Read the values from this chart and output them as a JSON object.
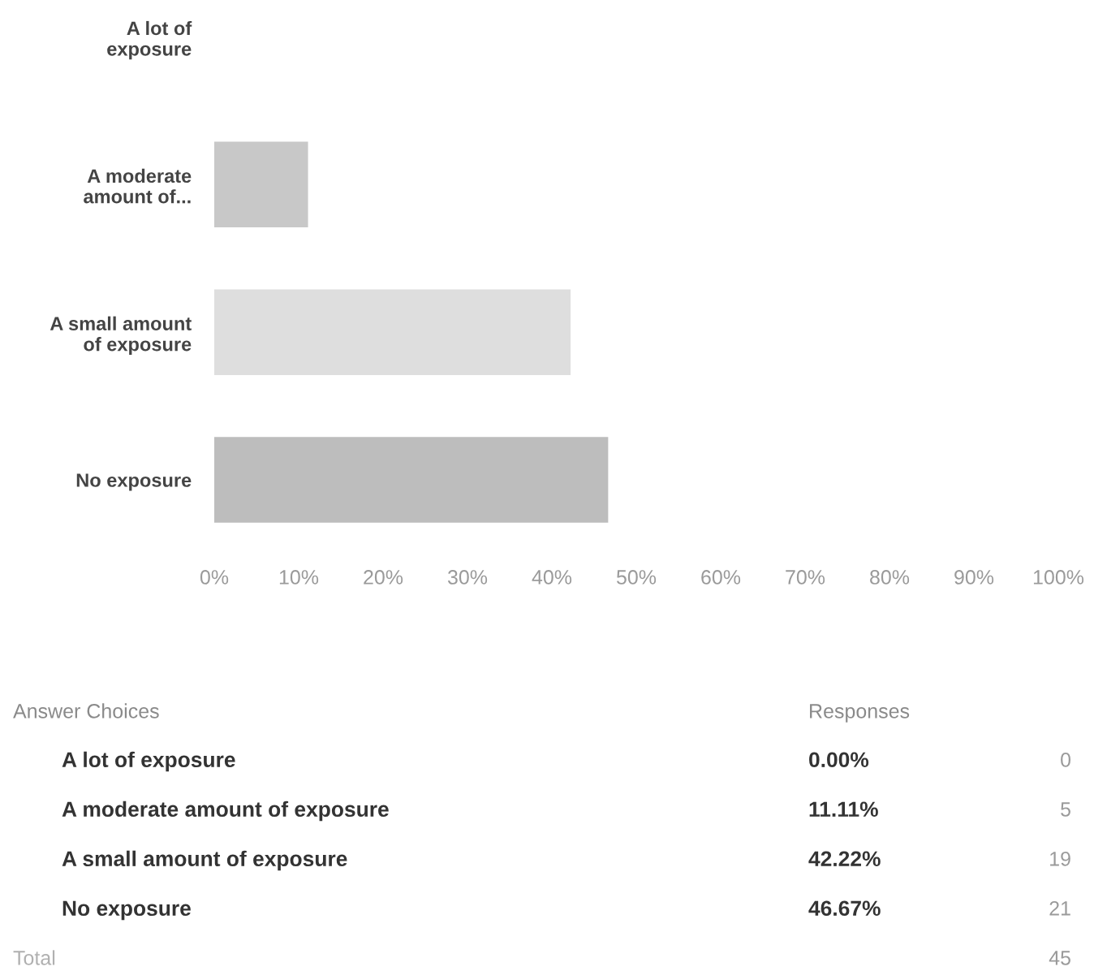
{
  "chart_data": {
    "type": "bar",
    "orientation": "horizontal",
    "categories": [
      "A lot of\nexposure",
      "A moderate\namount of...",
      "A small amount\nof exposure",
      "No exposure"
    ],
    "values": [
      0,
      11.11,
      42.22,
      46.67
    ],
    "colors": [
      "#c8c8c8",
      "#c8c8c8",
      "#dedede",
      "#bdbdbd"
    ],
    "xlim": [
      0,
      100
    ],
    "xticks": [
      {
        "value": 0,
        "label": "0%"
      },
      {
        "value": 10,
        "label": "10%"
      },
      {
        "value": 20,
        "label": "20%"
      },
      {
        "value": 30,
        "label": "30%"
      },
      {
        "value": 40,
        "label": "40%"
      },
      {
        "value": 50,
        "label": "50%"
      },
      {
        "value": 60,
        "label": "60%"
      },
      {
        "value": 70,
        "label": "70%"
      },
      {
        "value": 80,
        "label": "80%"
      },
      {
        "value": 90,
        "label": "90%"
      },
      {
        "value": 100,
        "label": "100%"
      }
    ],
    "annotations": [
      "Answer Choices",
      "Responses",
      "A lot of exposure",
      "0.00%",
      "0",
      "A moderate amount of exposure",
      "11.11%",
      "5",
      "A small amount of exposure",
      "42.22%",
      "19",
      "No exposure",
      "46.67%",
      "21",
      "Total",
      "45"
    ]
  }
}
